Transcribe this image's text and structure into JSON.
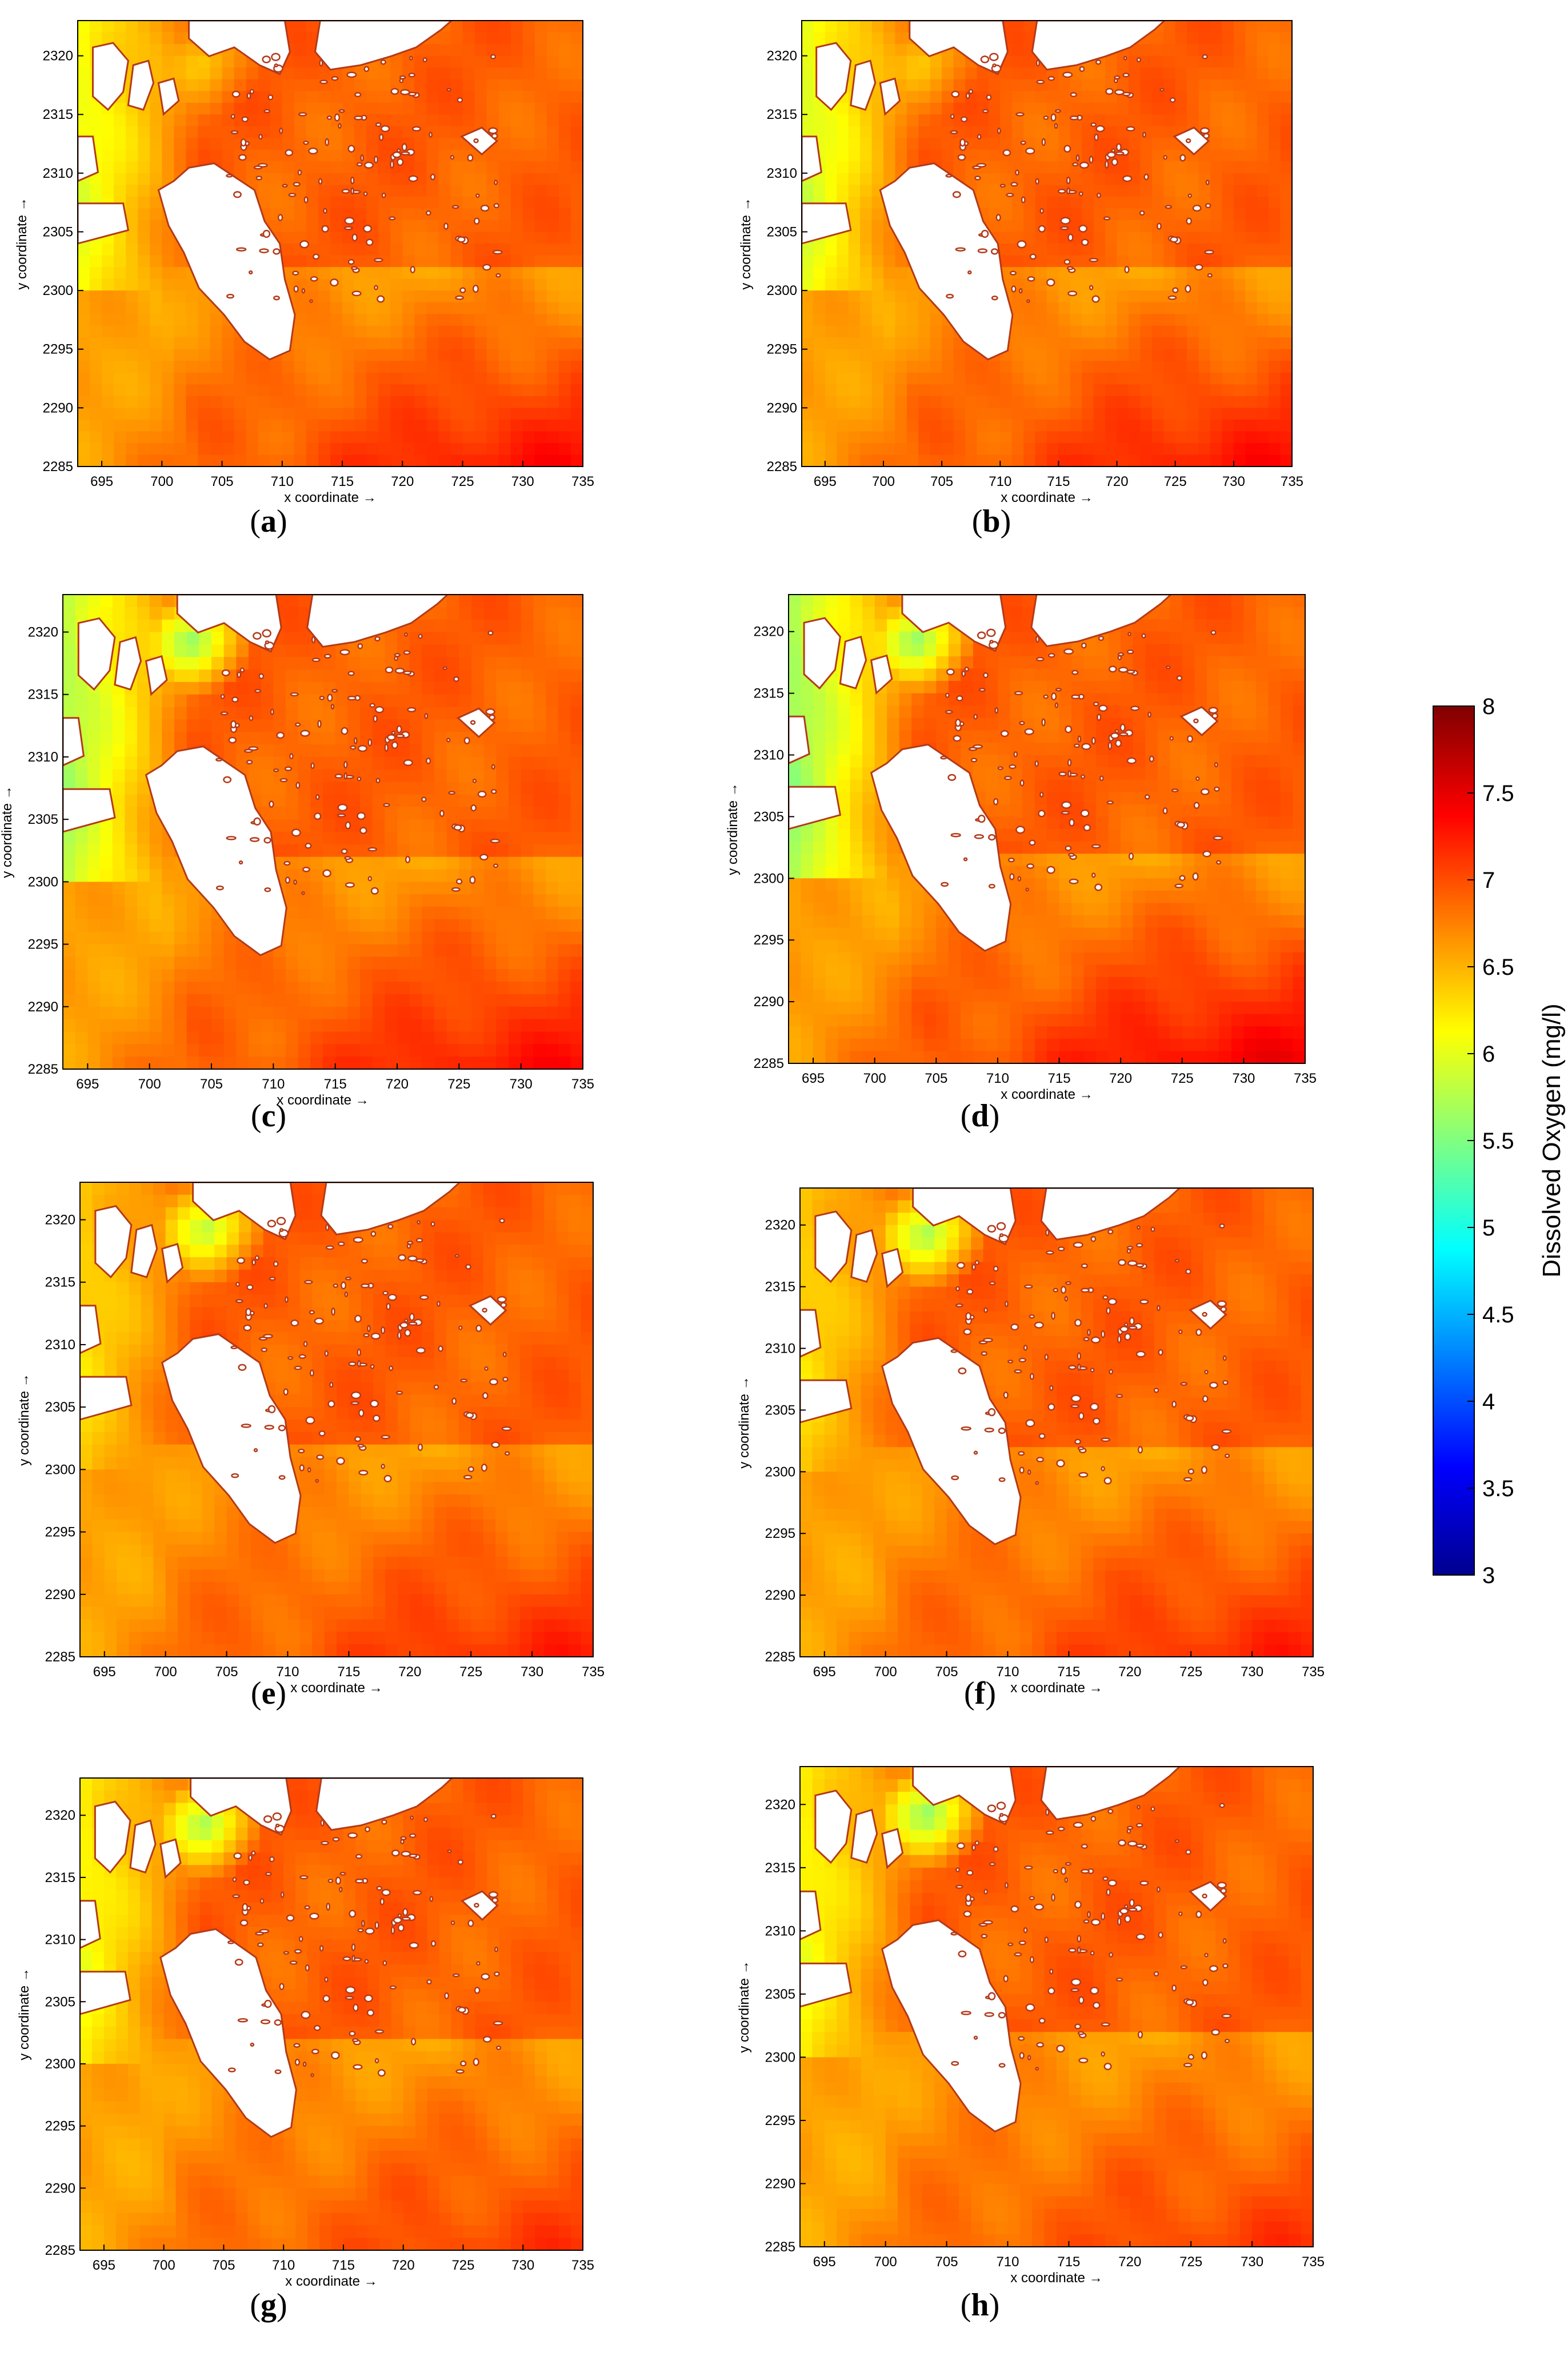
{
  "colors": {
    "colormap": [
      "#00008f",
      "#0000ff",
      "#0080ff",
      "#00ffff",
      "#80ff80",
      "#ffff00",
      "#ff8000",
      "#ff0000",
      "#800000"
    ],
    "land": "#ffffff",
    "coastline": "#b33a1a"
  },
  "colorbar": {
    "title": "Dissolved Oxygen (mg/l)",
    "range": [
      3,
      8
    ],
    "ticks": [
      "8",
      "7.5",
      "7",
      "6.5",
      "6",
      "5.5",
      "5",
      "4.5",
      "4",
      "3.5",
      "3"
    ]
  },
  "chart_data": [
    {
      "type": "heatmap",
      "panel": "a",
      "caption": "a",
      "xlabel": "x coordinate →",
      "ylabel": "y coordinate →",
      "xlim": [
        693,
        735
      ],
      "ylim": [
        2285,
        2323
      ],
      "xticks": [
        "695",
        "700",
        "705",
        "710",
        "715",
        "720",
        "725",
        "730",
        "735"
      ],
      "yticks": [
        "2285",
        "2290",
        "2295",
        "2300",
        "2305",
        "2310",
        "2315",
        "2320"
      ],
      "values_description": "field mostly 6.5–7.5 mg/l; lowest (≈6) near west boundary",
      "west_min": 6.0,
      "north_min": 6.4,
      "south_max": 7.3
    },
    {
      "type": "heatmap",
      "panel": "b",
      "caption": "b",
      "xlabel": "x coordinate →",
      "ylabel": "y coordinate →",
      "xlim": [
        693,
        735
      ],
      "ylim": [
        2285,
        2323
      ],
      "xticks": [
        "695",
        "700",
        "705",
        "710",
        "715",
        "720",
        "725",
        "730",
        "735"
      ],
      "yticks": [
        "2285",
        "2290",
        "2295",
        "2300",
        "2305",
        "2310",
        "2315",
        "2320"
      ],
      "west_min": 5.9,
      "north_min": 6.4,
      "south_max": 7.3
    },
    {
      "type": "heatmap",
      "panel": "c",
      "caption": "c",
      "xlabel": "x coordinate →",
      "ylabel": "y coordinate →",
      "xlim": [
        693,
        735
      ],
      "ylim": [
        2285,
        2323
      ],
      "xticks": [
        "695",
        "700",
        "705",
        "710",
        "715",
        "720",
        "725",
        "730",
        "735"
      ],
      "yticks": [
        "2285",
        "2290",
        "2295",
        "2300",
        "2305",
        "2310",
        "2315",
        "2320"
      ],
      "west_min": 5.7,
      "north_min": 5.6,
      "south_max": 7.3
    },
    {
      "type": "heatmap",
      "panel": "d",
      "caption": "d",
      "xlabel": "x coordinate →",
      "ylabel": "y coordinate →",
      "xlim": [
        693,
        735
      ],
      "ylim": [
        2285,
        2323
      ],
      "xticks": [
        "695",
        "700",
        "705",
        "710",
        "715",
        "720",
        "725",
        "730",
        "735"
      ],
      "yticks": [
        "2285",
        "2290",
        "2295",
        "2300",
        "2305",
        "2310",
        "2315",
        "2320"
      ],
      "west_min": 5.6,
      "north_min": 5.6,
      "south_max": 7.4
    },
    {
      "type": "heatmap",
      "panel": "e",
      "caption": "e",
      "xlabel": "x coordinate →",
      "ylabel": "y coordinate →",
      "xlim": [
        693,
        735
      ],
      "ylim": [
        2285,
        2323
      ],
      "xticks": [
        "695",
        "700",
        "705",
        "710",
        "715",
        "720",
        "725",
        "730",
        "735"
      ],
      "yticks": [
        "2285",
        "2290",
        "2295",
        "2300",
        "2305",
        "2310",
        "2315",
        "2320"
      ],
      "west_min": 6.3,
      "north_min": 5.8,
      "south_max": 7.2
    },
    {
      "type": "heatmap",
      "panel": "f",
      "caption": "f",
      "xlabel": "x coordinate →",
      "ylabel": "y coordinate →",
      "xlim": [
        693,
        735
      ],
      "ylim": [
        2285,
        2323
      ],
      "xticks": [
        "695",
        "700",
        "705",
        "710",
        "715",
        "720",
        "725",
        "730",
        "735"
      ],
      "yticks": [
        "2285",
        "2290",
        "2295",
        "2300",
        "2305",
        "2310",
        "2315",
        "2320"
      ],
      "west_min": 6.3,
      "north_min": 5.7,
      "south_max": 7.2
    },
    {
      "type": "heatmap",
      "panel": "g",
      "caption": "g",
      "xlabel": "x coordinate →",
      "ylabel": "y coordinate →",
      "xlim": [
        693,
        735
      ],
      "ylim": [
        2285,
        2323
      ],
      "xticks": [
        "695",
        "700",
        "705",
        "710",
        "715",
        "720",
        "725",
        "730",
        "735"
      ],
      "yticks": [
        "2285",
        "2290",
        "2295",
        "2300",
        "2305",
        "2310",
        "2315",
        "2320"
      ],
      "west_min": 6.1,
      "north_min": 5.7,
      "south_max": 7.1
    },
    {
      "type": "heatmap",
      "panel": "h",
      "caption": "h",
      "xlabel": "x coordinate →",
      "ylabel": "y coordinate →",
      "xlim": [
        693,
        735
      ],
      "ylim": [
        2285,
        2323
      ],
      "xticks": [
        "695",
        "700",
        "705",
        "710",
        "715",
        "720",
        "725",
        "730",
        "735"
      ],
      "yticks": [
        "2285",
        "2290",
        "2295",
        "2300",
        "2305",
        "2310",
        "2315",
        "2320"
      ],
      "west_min": 6.1,
      "north_min": 5.6,
      "south_max": 7.1
    }
  ]
}
